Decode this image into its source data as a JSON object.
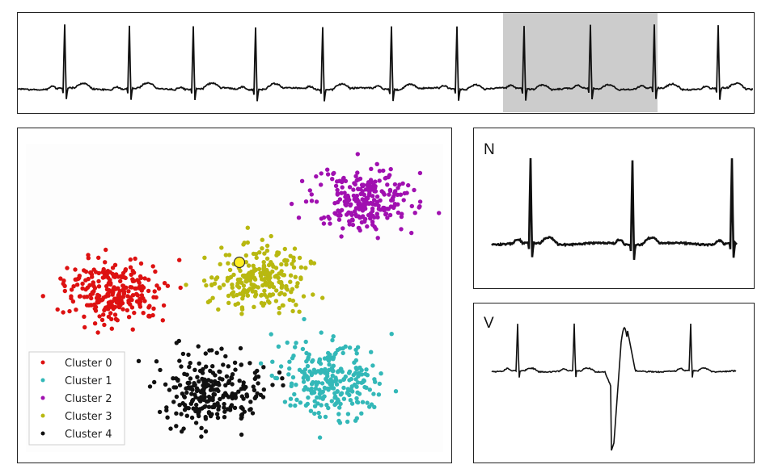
{
  "colors": {
    "trace": "#111111",
    "highlight": "#cccccc",
    "query_point": "#ffee22",
    "plot_bg": "#fdfdfd"
  },
  "scatter": {
    "clusters": [
      {
        "label": "Cluster 0",
        "color": "#dd1111",
        "center": [
          140,
          362
        ],
        "spread": [
          30,
          20
        ],
        "count": 260
      },
      {
        "label": "Cluster 1",
        "color": "#33b8b8",
        "center": [
          410,
          470
        ],
        "spread": [
          33,
          22
        ],
        "count": 260
      },
      {
        "label": "Cluster 2",
        "color": "#a010b0",
        "center": [
          448,
          248
        ],
        "spread": [
          30,
          20
        ],
        "count": 250
      },
      {
        "label": "Cluster 3",
        "color": "#b8b810",
        "center": [
          320,
          345
        ],
        "spread": [
          30,
          20
        ],
        "count": 240
      },
      {
        "label": "Cluster 4",
        "color": "#111111",
        "center": [
          262,
          484
        ],
        "spread": [
          32,
          21
        ],
        "count": 260
      }
    ],
    "legend_colors": [
      "#dd1111",
      "#33b8b8",
      "#a010b0",
      "#b8b810",
      "#111111"
    ]
  },
  "beats": {
    "normal_label": "N",
    "ventricular_label": "V"
  }
}
